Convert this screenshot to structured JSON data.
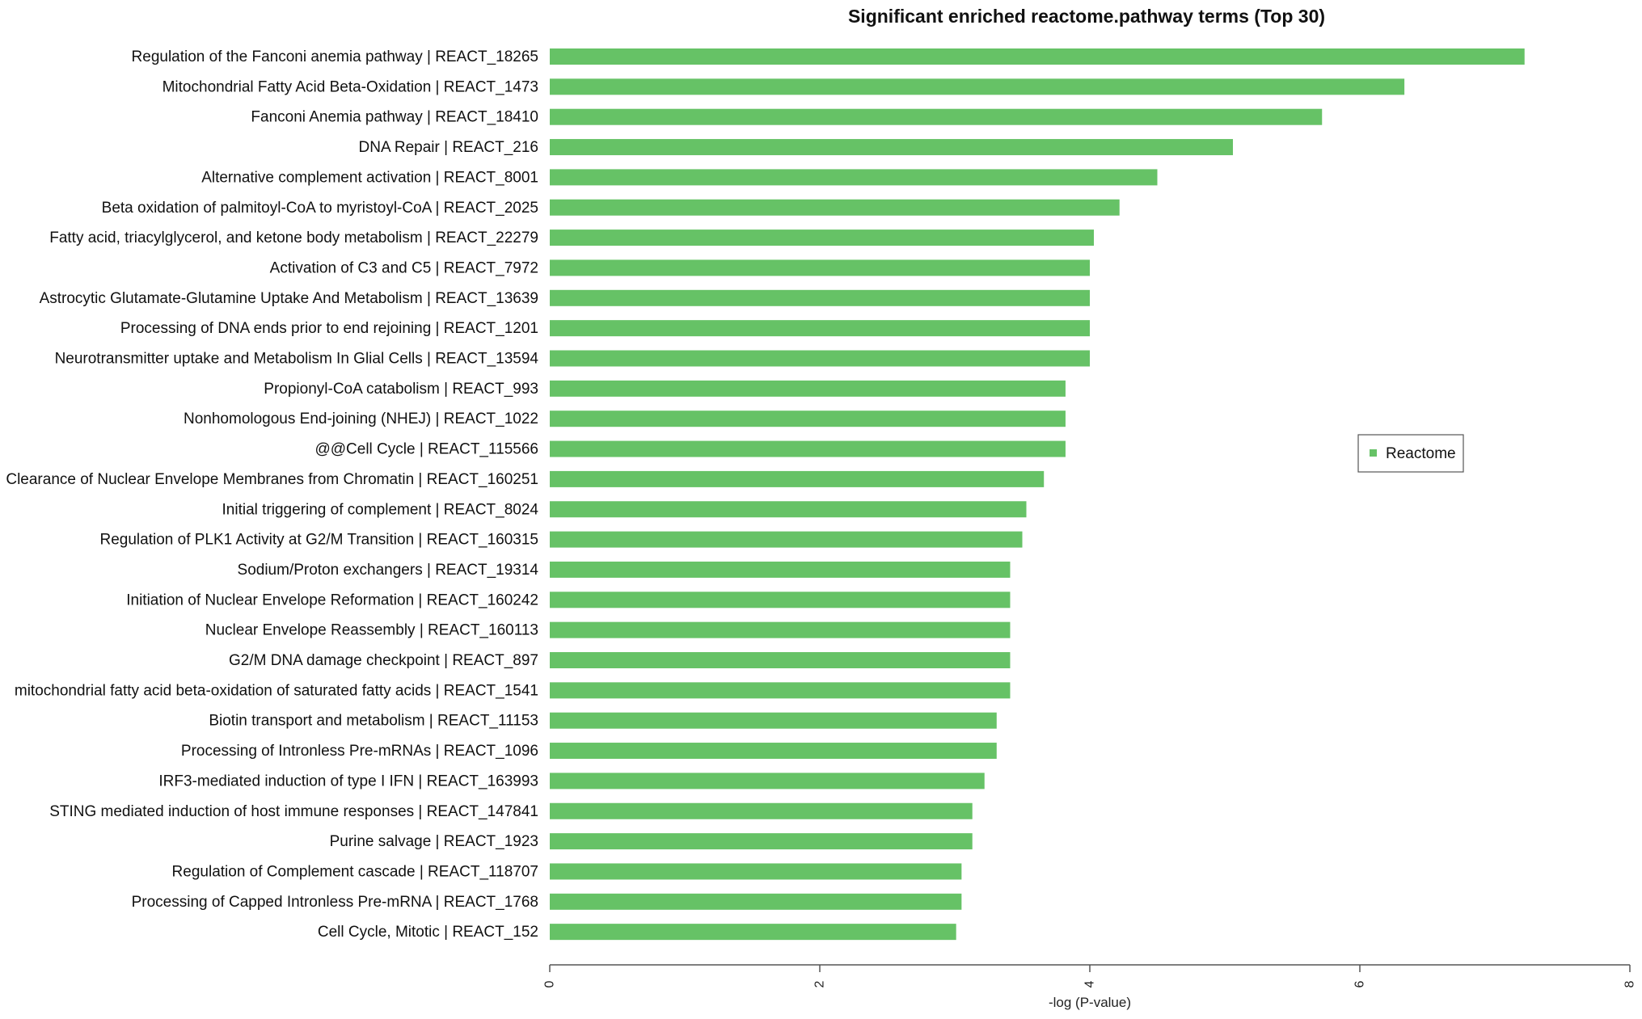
{
  "chart_data": {
    "type": "bar",
    "orientation": "horizontal",
    "title": "Significant enriched  reactome.pathway terms (Top 30)",
    "xlabel": "-log (P-value)",
    "ylabel": "",
    "xlim": [
      0,
      8
    ],
    "xticks": [
      "0",
      "2",
      "4",
      "6",
      "8"
    ],
    "grid": false,
    "legend": {
      "position": "right",
      "entries": [
        {
          "name": "Reactome",
          "color": "#66c266"
        }
      ]
    },
    "bar_color": "#66c266",
    "categories": [
      "Regulation of the Fanconi anemia pathway | REACT_18265",
      "Mitochondrial Fatty Acid Beta-Oxidation | REACT_1473",
      "Fanconi Anemia pathway | REACT_18410",
      "DNA Repair | REACT_216",
      "Alternative complement activation | REACT_8001",
      "Beta oxidation of palmitoyl-CoA to myristoyl-CoA | REACT_2025",
      "Fatty acid, triacylglycerol, and ketone body metabolism | REACT_22279",
      "Activation of C3 and C5 | REACT_7972",
      "Astrocytic Glutamate-Glutamine Uptake And Metabolism | REACT_13639",
      "Processing of DNA ends prior to end rejoining | REACT_1201",
      "Neurotransmitter uptake and Metabolism In Glial Cells | REACT_13594",
      "Propionyl-CoA catabolism | REACT_993",
      "Nonhomologous End-joining (NHEJ) | REACT_1022",
      "@@Cell Cycle | REACT_115566",
      "Clearance of Nuclear Envelope Membranes from Chromatin | REACT_160251",
      "Initial triggering of complement | REACT_8024",
      "Regulation of PLK1 Activity at G2/M Transition | REACT_160315",
      "Sodium/Proton exchangers | REACT_19314",
      "Initiation of Nuclear Envelope Reformation | REACT_160242",
      "Nuclear Envelope Reassembly | REACT_160113",
      "G2/M DNA damage checkpoint | REACT_897",
      "mitochondrial fatty acid beta-oxidation of saturated fatty acids | REACT_1541",
      "Biotin transport and metabolism | REACT_11153",
      "Processing of Intronless Pre-mRNAs | REACT_1096",
      "IRF3-mediated induction of type I IFN | REACT_163993",
      "STING mediated induction of host immune responses | REACT_147841",
      "Purine salvage | REACT_1923",
      "Regulation of Complement cascade | REACT_118707",
      "Processing of Capped Intronless Pre-mRNA | REACT_1768",
      "Cell Cycle, Mitotic | REACT_152"
    ],
    "values": [
      7.22,
      6.33,
      5.72,
      5.06,
      4.5,
      4.22,
      4.03,
      4.0,
      4.0,
      4.0,
      4.0,
      3.82,
      3.82,
      3.82,
      3.66,
      3.53,
      3.5,
      3.41,
      3.41,
      3.41,
      3.41,
      3.41,
      3.31,
      3.31,
      3.22,
      3.13,
      3.13,
      3.05,
      3.05,
      3.01
    ]
  }
}
